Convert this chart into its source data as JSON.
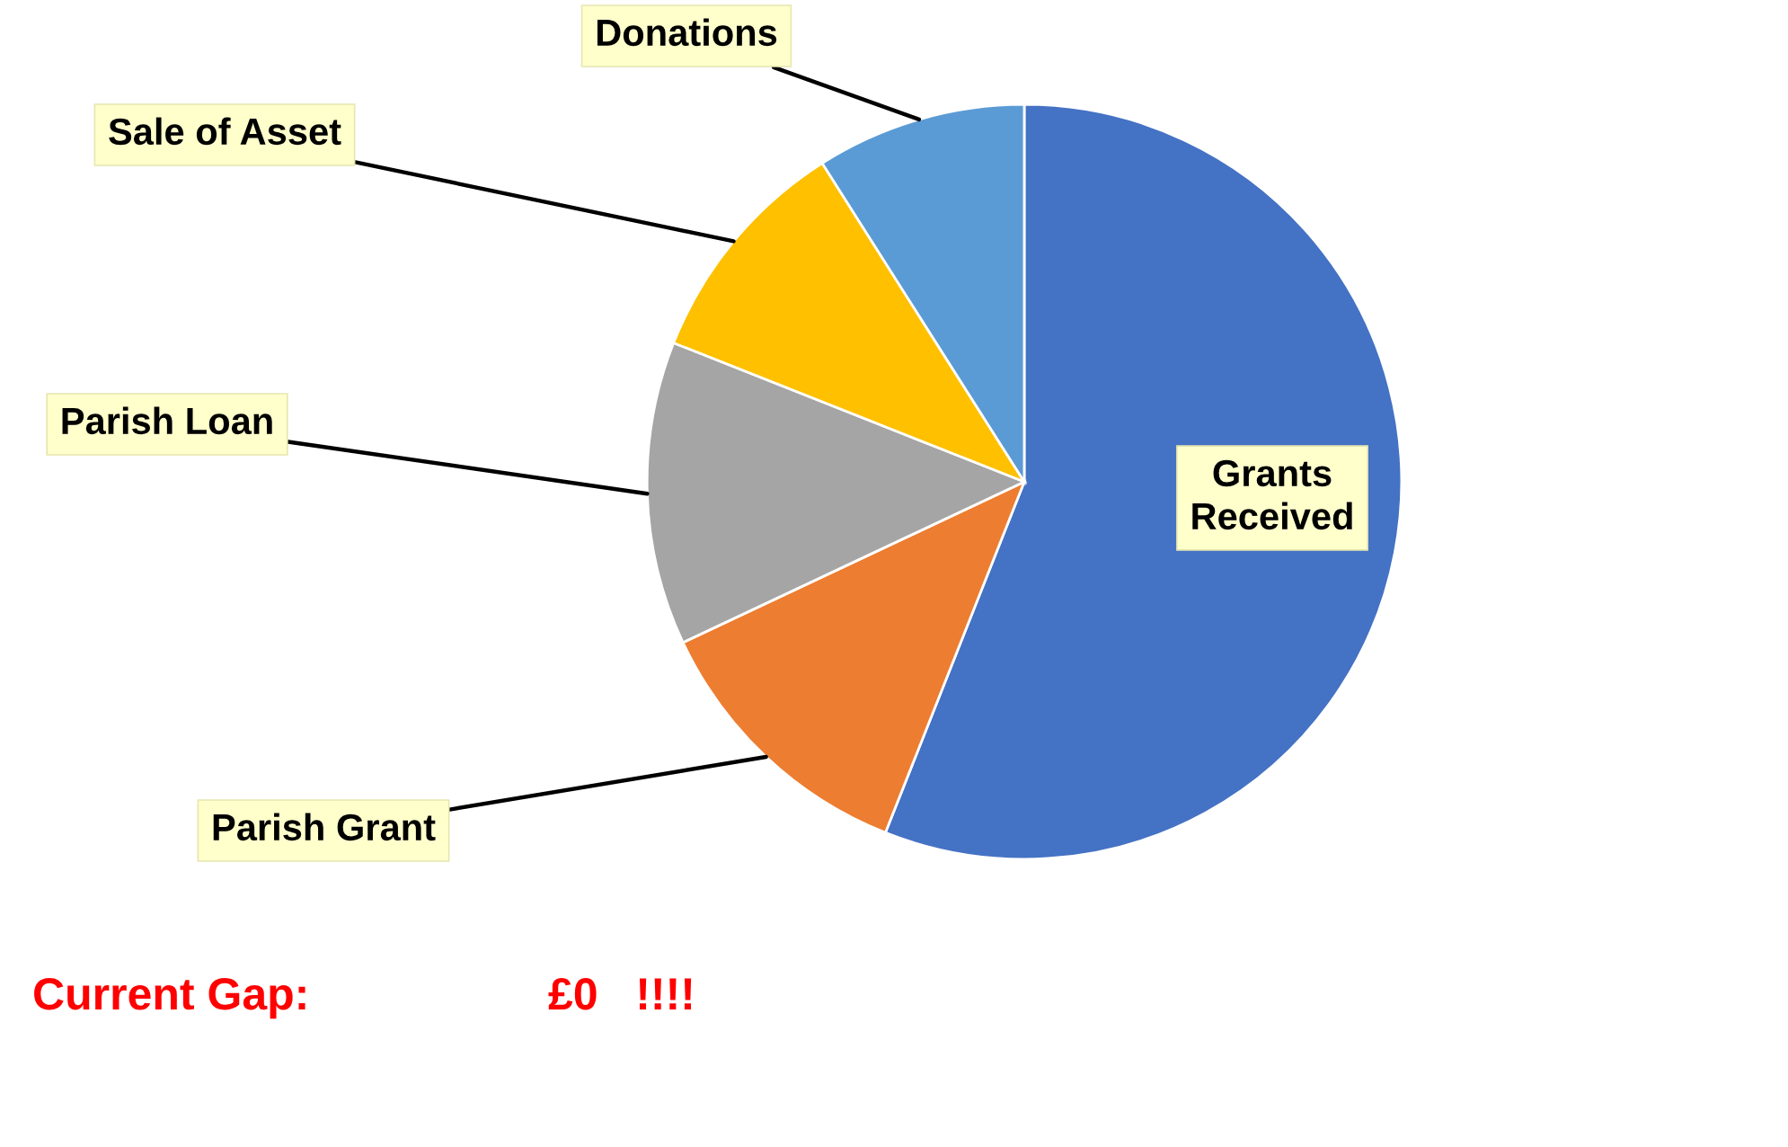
{
  "chart_data": {
    "type": "pie",
    "categories": [
      "Grants Received",
      "Parish Grant",
      "Parish Loan",
      "Sale of Asset",
      "Donations"
    ],
    "values": [
      56,
      12,
      13,
      10,
      9
    ],
    "colors": [
      "#4472c4",
      "#ed7d31",
      "#a5a5a5",
      "#ffc000",
      "#5b9bd5"
    ],
    "annotations": [
      "Current Gap:",
      "£0   !!!!"
    ]
  }
}
